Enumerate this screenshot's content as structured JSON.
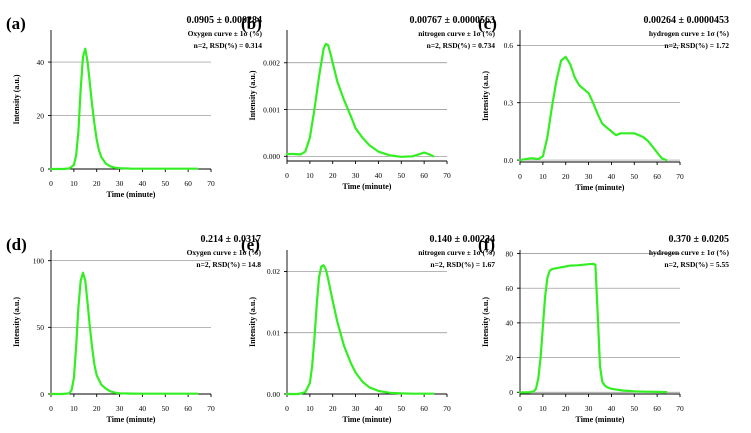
{
  "figure": {
    "background": "#ffffff",
    "curve_color": "#33ee22",
    "grid_color": "#8a8a8a"
  },
  "chart_data": [
    {
      "type": "line",
      "panel": "(a)",
      "headline": "0.0905 ± 0.000284",
      "series_note": "Oxygen curve ± 1σ (%)",
      "stats": "n=2, RSD(%) = 0.314",
      "xlabel": "Time (minute)",
      "ylabel": "Intensity (a.u.)",
      "xlim": [
        0,
        70
      ],
      "xticks": [
        0,
        10,
        20,
        30,
        40,
        50,
        60,
        70
      ],
      "ylim": [
        0,
        52
      ],
      "yticks": [
        0,
        20,
        40
      ],
      "ytick_labels": [
        "0",
        "20",
        "40"
      ],
      "series": [
        {
          "name": "Oxygen",
          "x": [
            0,
            5,
            8,
            10,
            11,
            12,
            13,
            14,
            15,
            16,
            17,
            18,
            19,
            20,
            21,
            22,
            24,
            26,
            28,
            30,
            35,
            40,
            45,
            50,
            55,
            60,
            64
          ],
          "y": [
            0,
            0,
            0.2,
            1.5,
            5,
            14,
            30,
            42,
            45,
            40,
            32,
            24,
            17,
            11,
            7,
            4.5,
            2,
            1,
            0.5,
            0.3,
            0.15,
            0.1,
            0.1,
            0.1,
            0.1,
            0.1,
            0.1
          ]
        }
      ]
    },
    {
      "type": "line",
      "panel": "(b)",
      "headline": "0.00767 ± 0.0000563",
      "series_note": "nitrogen curve ± 1σ (%)",
      "stats": "n=2, RSD(%) = 0.734",
      "xlabel": "Time (minute)",
      "ylabel": "Intensity (a.u.)",
      "xlim": [
        0,
        70
      ],
      "xticks": [
        0,
        10,
        20,
        30,
        40,
        50,
        60,
        70
      ],
      "ylim": [
        -0.0001,
        0.0027
      ],
      "yticks": [
        0,
        0.001,
        0.002
      ],
      "ytick_labels": [
        "0.000",
        "0.001",
        "0.002"
      ],
      "series": [
        {
          "name": "nitrogen",
          "x": [
            0,
            3,
            6,
            8,
            10,
            12,
            14,
            16,
            17,
            18,
            19,
            20,
            22,
            25,
            28,
            30,
            33,
            36,
            40,
            45,
            50,
            55,
            60,
            62,
            64
          ],
          "y": [
            5e-05,
            5e-05,
            4e-05,
            0.0001,
            0.0004,
            0.001,
            0.0017,
            0.0023,
            0.0024,
            0.00238,
            0.0022,
            0.002,
            0.0016,
            0.0012,
            0.00085,
            0.0006,
            0.0004,
            0.00024,
            0.0001,
            2e-05,
            -1e-05,
            0,
            8e-05,
            5e-05,
            0
          ]
        }
      ]
    },
    {
      "type": "line",
      "panel": "(c)",
      "headline": "0.00264 ± 0.0000453",
      "series_note": "hydrogen curve ± 1σ (%)",
      "stats": "n=2, RSD(%) = 1.72",
      "xlabel": "Time (minute)",
      "ylabel": "Intensity (a.u.)",
      "xlim": [
        0,
        70
      ],
      "xticks": [
        0,
        10,
        20,
        30,
        40,
        50,
        60,
        70
      ],
      "ylim": [
        -0.01,
        0.68
      ],
      "yticks": [
        0,
        0.3,
        0.6
      ],
      "ytick_labels": [
        "0.0",
        "0.3",
        "0.6"
      ],
      "series": [
        {
          "name": "hydrogen",
          "x": [
            0,
            5,
            8,
            10,
            12,
            14,
            16,
            18,
            20,
            22,
            24,
            26,
            28,
            30,
            32,
            34,
            36,
            38,
            40,
            42,
            44,
            46,
            48,
            50,
            52,
            54,
            56,
            58,
            60,
            62,
            64
          ],
          "y": [
            0,
            0.01,
            0.005,
            0.02,
            0.12,
            0.28,
            0.42,
            0.52,
            0.54,
            0.5,
            0.43,
            0.39,
            0.37,
            0.35,
            0.3,
            0.24,
            0.19,
            0.17,
            0.15,
            0.13,
            0.14,
            0.14,
            0.14,
            0.14,
            0.13,
            0.12,
            0.1,
            0.07,
            0.04,
            0.01,
            0
          ]
        }
      ]
    },
    {
      "type": "line",
      "panel": "(d)",
      "headline": "0.214 ± 0.0317",
      "series_note": "Oxygen curve ± 1σ (%)",
      "stats": "n=2, RSD(%) = 14.8",
      "xlabel": "Time (minute)",
      "ylabel": "Intensity (a.u.)",
      "xlim": [
        0,
        70
      ],
      "xticks": [
        0,
        10,
        20,
        30,
        40,
        50,
        60,
        70
      ],
      "ylim": [
        0,
        108
      ],
      "yticks": [
        0,
        50,
        100
      ],
      "ytick_labels": [
        "0",
        "50",
        "100"
      ],
      "series": [
        {
          "name": "Oxygen",
          "x": [
            0,
            5,
            8,
            9,
            10,
            11,
            12,
            13,
            14,
            15,
            16,
            17,
            18,
            19,
            20,
            22,
            24,
            26,
            28,
            30,
            35,
            40,
            50,
            60,
            64
          ],
          "y": [
            0,
            0,
            0.5,
            3,
            12,
            35,
            65,
            85,
            91,
            85,
            68,
            50,
            35,
            22,
            14,
            7,
            4,
            2,
            1,
            0.5,
            0.3,
            0.2,
            0.2,
            0.2,
            0.2
          ]
        }
      ]
    },
    {
      "type": "line",
      "panel": "(e)",
      "headline": "0.140 ± 0.00234",
      "series_note": "nitrogen curve ± 1σ (%)",
      "stats": "n=2, RSD(%) = 1.67",
      "xlabel": "Time (minute)",
      "ylabel": "Intensity (a.u.)",
      "xlim": [
        0,
        70
      ],
      "xticks": [
        0,
        10,
        20,
        30,
        40,
        50,
        60,
        70
      ],
      "ylim": [
        0,
        0.0235
      ],
      "yticks": [
        0,
        0.01,
        0.02
      ],
      "ytick_labels": [
        "0.00",
        "0.01",
        "0.02"
      ],
      "series": [
        {
          "name": "nitrogen",
          "x": [
            0,
            5,
            8,
            10,
            11,
            12,
            13,
            14,
            15,
            16,
            17,
            18,
            20,
            22,
            25,
            28,
            30,
            33,
            36,
            40,
            45,
            50,
            55,
            60,
            64
          ],
          "y": [
            0,
            0,
            0.0003,
            0.0018,
            0.0045,
            0.009,
            0.0145,
            0.019,
            0.0208,
            0.021,
            0.0203,
            0.0188,
            0.0152,
            0.0118,
            0.0078,
            0.005,
            0.0035,
            0.002,
            0.0011,
            0.0005,
            0.0002,
            0.0001,
            5e-05,
            5e-05,
            5e-05
          ]
        }
      ]
    },
    {
      "type": "line",
      "panel": "(f)",
      "headline": "0.370 ± 0.0205",
      "series_note": "hydrogen curve ± 1σ (%)",
      "stats": "n=2, RSD(%) = 5.55",
      "xlabel": "Time (minute)",
      "ylabel": "Intensity (a.u.)",
      "xlim": [
        0,
        70
      ],
      "xticks": [
        0,
        10,
        20,
        30,
        40,
        50,
        60,
        70
      ],
      "ylim": [
        -1,
        82
      ],
      "yticks": [
        0,
        20,
        40,
        60,
        80
      ],
      "ytick_labels": [
        "0",
        "20",
        "40",
        "60",
        "80"
      ],
      "series": [
        {
          "name": "hydrogen",
          "x": [
            0,
            4,
            6,
            7,
            8,
            9,
            10,
            11,
            12,
            13,
            14,
            16,
            18,
            20,
            22,
            25,
            28,
            30,
            32,
            33,
            34,
            35,
            36,
            37,
            38,
            40,
            45,
            50,
            55,
            60,
            64
          ],
          "y": [
            0,
            0,
            0.5,
            2,
            8,
            20,
            38,
            55,
            66,
            70,
            71,
            71.5,
            72,
            72.5,
            73,
            73.2,
            73.5,
            73.8,
            74,
            73.5,
            45,
            15,
            6,
            4,
            3,
            2,
            1,
            0.5,
            0.3,
            0.2,
            0.1
          ]
        }
      ]
    }
  ]
}
